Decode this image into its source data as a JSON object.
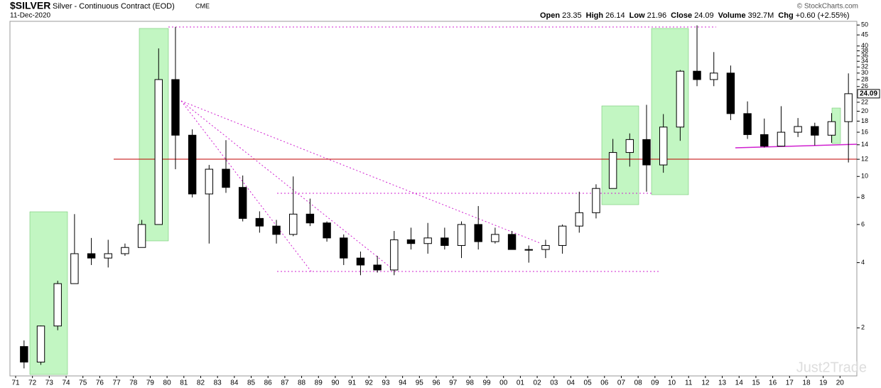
{
  "chart_data": {
    "type": "candlestick",
    "symbol": "$SILVER",
    "title": "Silver - Continuous Contract (EOD)",
    "exchange": "CME",
    "date": "11-Dec-2020",
    "credit": "© StockCharts.com",
    "watermark": "Just2Trade",
    "stats": [
      {
        "label": "Open",
        "value": "23.35"
      },
      {
        "label": "High",
        "value": "26.14"
      },
      {
        "label": "Low",
        "value": "21.96"
      },
      {
        "label": "Close",
        "value": "24.09"
      },
      {
        "label": "Volume",
        "value": "392.7M"
      },
      {
        "label": "Chg",
        "value": "+0.60 (+2.55%)"
      }
    ],
    "categories": [
      "71",
      "72",
      "73",
      "74",
      "75",
      "76",
      "77",
      "78",
      "79",
      "80",
      "81",
      "82",
      "83",
      "84",
      "85",
      "86",
      "87",
      "88",
      "89",
      "90",
      "91",
      "92",
      "93",
      "94",
      "95",
      "96",
      "97",
      "98",
      "99",
      "00",
      "01",
      "02",
      "03",
      "04",
      "05",
      "06",
      "07",
      "08",
      "09",
      "10",
      "11",
      "12",
      "13",
      "14",
      "15",
      "16",
      "17",
      "18",
      "19",
      "20"
    ],
    "open": [
      1.64,
      1.39,
      2.04,
      3.2,
      4.4,
      4.2,
      4.4,
      4.7,
      6.0,
      28,
      15.5,
      8.3,
      10.8,
      8.9,
      6.4,
      5.9,
      5.4,
      6.7,
      6.1,
      5.2,
      4.2,
      3.9,
      3.7,
      5.1,
      4.9,
      5.2,
      4.8,
      6.0,
      5.0,
      5.4,
      4.6,
      4.6,
      4.8,
      5.9,
      6.8,
      8.8,
      12.9,
      14.8,
      11.3,
      16.9,
      30.6,
      28,
      30,
      19.5,
      15.6,
      13.8,
      16,
      17,
      15.5,
      17.9
    ],
    "high": [
      1.75,
      2.05,
      3.3,
      6.7,
      5.2,
      5.1,
      4.9,
      6.3,
      39,
      49,
      16.5,
      11.3,
      14.7,
      10.1,
      6.9,
      6.3,
      10.0,
      7.9,
      6.2,
      5.4,
      4.5,
      4.3,
      5.6,
      5.8,
      6.1,
      5.8,
      6.2,
      7.3,
      5.8,
      5.6,
      4.8,
      5.1,
      6.0,
      8.5,
      9.2,
      14.9,
      15.8,
      21.4,
      19.4,
      31,
      49.8,
      37.5,
      32.5,
      22.2,
      18.5,
      21.1,
      18.6,
      17.7,
      19.6,
      29.9
    ],
    "low": [
      1.3,
      1.35,
      1.95,
      3.2,
      3.9,
      3.8,
      4.3,
      4.7,
      6.0,
      10.8,
      8.0,
      4.9,
      8.4,
      6.2,
      5.5,
      4.9,
      5.3,
      5.9,
      5.0,
      3.9,
      3.5,
      3.6,
      3.5,
      4.6,
      4.4,
      4.6,
      4.2,
      4.6,
      4.9,
      4.6,
      4.0,
      4.2,
      4.4,
      5.5,
      6.4,
      8.8,
      11.1,
      8.5,
      10.4,
      14.6,
      26.1,
      26.1,
      18.2,
      14.9,
      13.6,
      13.8,
      15.2,
      13.9,
      14.3,
      11.6
    ],
    "close": [
      1.39,
      2.04,
      3.2,
      4.4,
      4.2,
      4.4,
      4.7,
      6.0,
      28,
      15.5,
      8.3,
      10.8,
      8.9,
      6.4,
      5.9,
      5.4,
      6.7,
      6.1,
      5.2,
      4.2,
      3.9,
      3.7,
      5.1,
      4.9,
      5.2,
      4.8,
      6.0,
      5.0,
      5.4,
      4.6,
      4.6,
      4.8,
      5.9,
      6.8,
      8.8,
      12.9,
      14.8,
      11.3,
      16.9,
      30.6,
      28,
      30,
      19.5,
      15.6,
      13.8,
      16,
      17,
      15.5,
      17.9,
      24.09
    ],
    "up_color": "#ffffff",
    "down_color": "#000000",
    "log_scale": true,
    "ylim": [
      1.2,
      52
    ],
    "yticks": [
      2,
      4,
      6,
      8,
      10,
      12,
      14,
      16,
      18,
      20,
      22,
      26,
      28,
      30,
      32,
      34,
      36,
      38,
      40,
      45,
      50
    ]
  }
}
